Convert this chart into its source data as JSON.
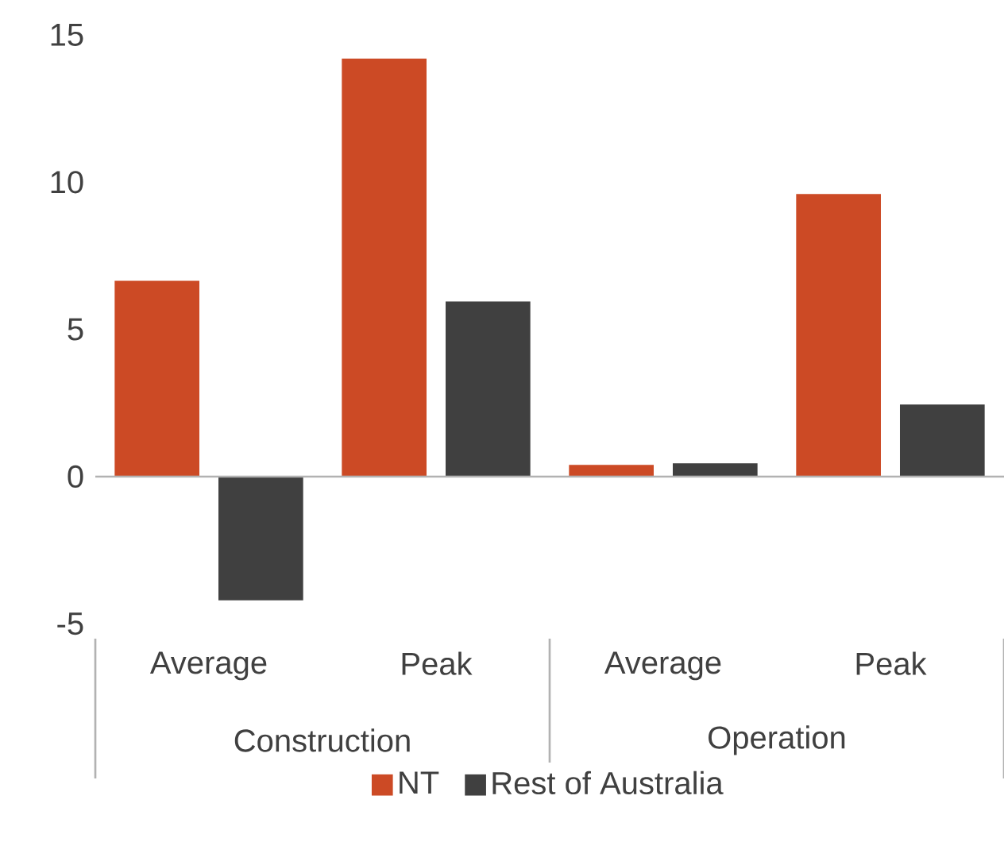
{
  "chart_data": {
    "type": "bar",
    "categories": [
      "Average",
      "Peak",
      "Average",
      "Peak"
    ],
    "series": [
      {
        "name": "NT",
        "color": "#cc4a25",
        "values": [
          6.65,
          14.2,
          0.4,
          9.6
        ]
      },
      {
        "name": "Rest of Australia",
        "color": "#404040",
        "values": [
          -4.2,
          5.95,
          0.45,
          2.45
        ]
      }
    ],
    "ylim": [
      -5,
      15
    ],
    "yticks": [
      -5,
      0,
      5,
      10,
      15
    ],
    "legend": "bottom",
    "annotations": [
      "Construction",
      "Operation"
    ]
  }
}
